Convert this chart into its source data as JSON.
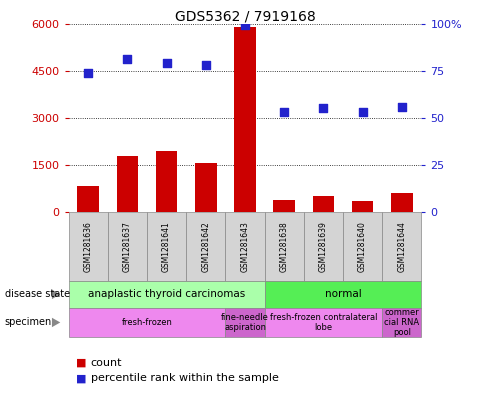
{
  "title": "GDS5362 / 7919168",
  "samples": [
    "GSM1281636",
    "GSM1281637",
    "GSM1281641",
    "GSM1281642",
    "GSM1281643",
    "GSM1281638",
    "GSM1281639",
    "GSM1281640",
    "GSM1281644"
  ],
  "counts": [
    820,
    1800,
    1950,
    1580,
    5880,
    380,
    520,
    360,
    620
  ],
  "percentile_ranks": [
    74,
    81,
    79,
    78,
    99,
    53,
    55,
    53,
    56
  ],
  "count_color": "#cc0000",
  "percentile_color": "#2222cc",
  "ylim_left": [
    0,
    6000
  ],
  "ylim_right": [
    0,
    100
  ],
  "yticks_left": [
    0,
    1500,
    3000,
    4500,
    6000
  ],
  "yticks_right": [
    0,
    25,
    50,
    75,
    100
  ],
  "ytick_labels_right": [
    "0",
    "25",
    "50",
    "75",
    "100%"
  ],
  "disease_state_groups": [
    {
      "label": "anaplastic thyroid carcinomas",
      "start": 0,
      "end": 5,
      "color": "#aaffaa"
    },
    {
      "label": "normal",
      "start": 5,
      "end": 9,
      "color": "#55ee55"
    }
  ],
  "specimen_groups": [
    {
      "label": "fresh-frozen",
      "start": 0,
      "end": 4,
      "color": "#ee88ee"
    },
    {
      "label": "fine-needle\naspiration",
      "start": 4,
      "end": 5,
      "color": "#cc66cc"
    },
    {
      "label": "fresh-frozen contralateral\nlobe",
      "start": 5,
      "end": 8,
      "color": "#ee88ee"
    },
    {
      "label": "commer\ncial RNA\npool",
      "start": 8,
      "end": 9,
      "color": "#cc66cc"
    }
  ],
  "background_color": "#ffffff",
  "bar_width": 0.55,
  "marker_size": 6,
  "label_count": "count",
  "label_percentile": "percentile rank within the sample",
  "ylabel_left_color": "#cc0000",
  "ylabel_right_color": "#2222cc",
  "sample_box_color": "#d4d4d4",
  "sample_box_edge": "#888888"
}
